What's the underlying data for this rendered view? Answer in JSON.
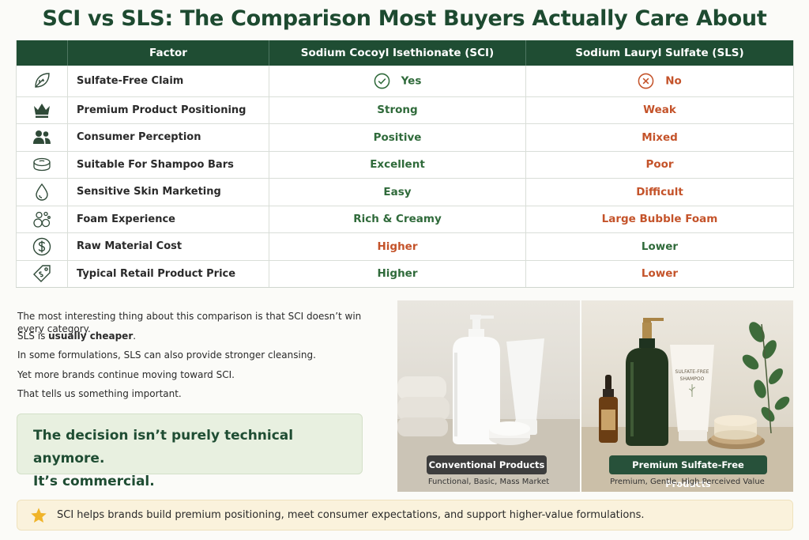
{
  "title": "SCI vs SLS: The Comparison Most Buyers Actually Care About",
  "table": {
    "headers": [
      "",
      "Factor",
      "Sodium Cocoyl Isethionate (SCI)",
      "Sodium Lauryl Sulfate (SLS)"
    ],
    "rows": [
      {
        "icon": "leaf-icon",
        "factor": "Sulfate-Free Claim",
        "sci": "Yes",
        "sls": "No"
      },
      {
        "icon": "crown-icon",
        "factor": "Premium Product Positioning",
        "sci": "Strong",
        "sls": "Weak"
      },
      {
        "icon": "people-icon",
        "factor": "Consumer Perception",
        "sci": "Positive",
        "sls": "Mixed"
      },
      {
        "icon": "soap-bar-icon",
        "factor": "Suitable For Shampoo Bars",
        "sci": "Excellent",
        "sls": "Poor"
      },
      {
        "icon": "droplet-icon",
        "factor": "Sensitive Skin Marketing",
        "sci": "Easy",
        "sls": "Difficult"
      },
      {
        "icon": "bubbles-icon",
        "factor": "Foam Experience",
        "sci": "Rich & Creamy",
        "sls": "Large Bubble Foam"
      },
      {
        "icon": "dollar-icon",
        "factor": "Raw Material Cost",
        "sci": "Higher",
        "sls": "Lower"
      },
      {
        "icon": "price-tag-icon",
        "factor": "Typical Retail Product Price",
        "sci": "Higher",
        "sls": "Lower"
      }
    ]
  },
  "body": {
    "line1": "The most interesting thing about this comparison is that SCI doesn’t win every category.",
    "line2_prefix": "SLS is ",
    "line2_bold": "usually cheaper",
    "line2_suffix": ".",
    "line3": "In some formulations, SLS can also provide stronger cleansing.",
    "line4": "Yet more brands continue moving toward SCI.",
    "line5": "That tells us something important."
  },
  "callout": {
    "line1": "The decision isn’t purely technical anymore.",
    "line2": "It’s commercial."
  },
  "images": {
    "left": {
      "badge": "Conventional Products",
      "caption": "Functional, Basic, Mass Market"
    },
    "right": {
      "badge": "Premium Sulfate-Free Products",
      "caption": "Premium, Gentle, High Perceived Value",
      "tube_label_line1": "SULFATE-FREE",
      "tube_label_line2": "SHAMPOO"
    }
  },
  "footer": {
    "icon": "star-icon",
    "text": "SCI helps brands build premium positioning, meet consumer expectations, and support higher-value formulations."
  },
  "colors": {
    "accent_green": "#1f4d33",
    "positive": "#2f6a3a",
    "negative": "#c4532a",
    "footer_bg": "#faf2dc"
  }
}
